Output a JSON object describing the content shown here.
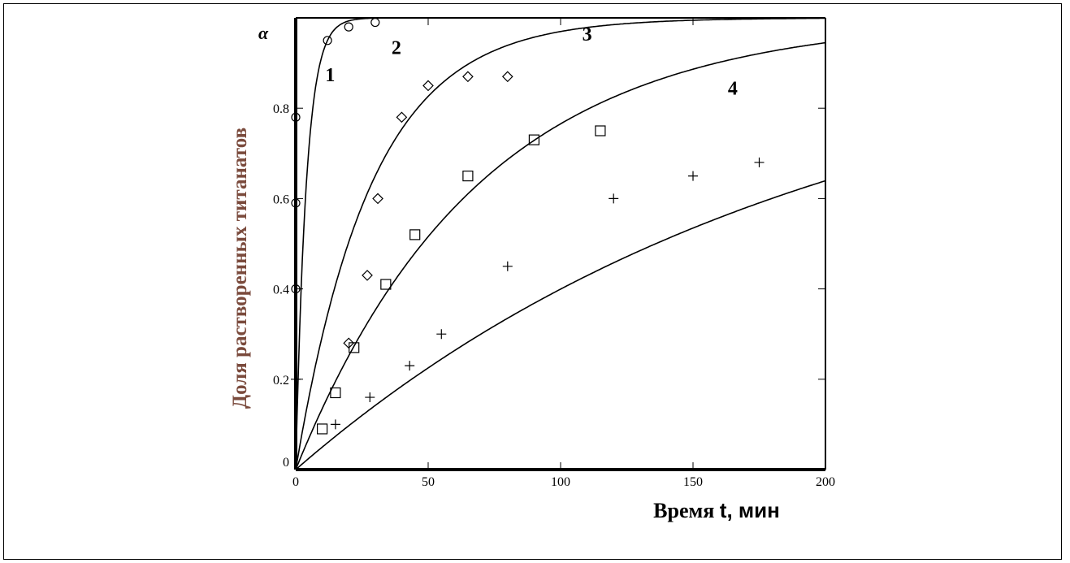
{
  "chart_data": {
    "type": "scatter",
    "ylabel": "Доля растворенных титанатов",
    "ylabel_symbol": "α",
    "xlabel": "Время",
    "xlabel_symbol": "t",
    "xlabel_unit": ", мин",
    "xlim": [
      0,
      200
    ],
    "ylim": [
      0,
      1.0
    ],
    "x_ticks": [
      0,
      50,
      100,
      150,
      200
    ],
    "x_tick_labels": [
      "0",
      "50",
      "100",
      "150",
      "200"
    ],
    "y_ticks": [
      0,
      0.2,
      0.4,
      0.6,
      0.8
    ],
    "y_tick_labels": [
      "0",
      "0.2",
      "0.4",
      "0.6",
      "0.8"
    ],
    "grid": false,
    "legend": "none",
    "series": [
      {
        "name": "1",
        "marker": "circle",
        "points": [
          [
            0,
            0.4
          ],
          [
            0,
            0.59
          ],
          [
            0,
            0.78
          ],
          [
            12,
            0.95
          ],
          [
            20,
            0.98
          ],
          [
            30,
            0.99
          ]
        ],
        "curve_k": 0.25,
        "label_pos": [
          13,
          0.86
        ]
      },
      {
        "name": "2",
        "marker": "diamond",
        "points": [
          [
            20,
            0.28
          ],
          [
            27,
            0.43
          ],
          [
            31,
            0.6
          ],
          [
            40,
            0.78
          ],
          [
            50,
            0.85
          ],
          [
            65,
            0.87
          ],
          [
            80,
            0.87
          ]
        ],
        "curve_k": 0.035,
        "label_pos": [
          38,
          0.92
        ]
      },
      {
        "name": "3",
        "marker": "square",
        "points": [
          [
            10,
            0.09
          ],
          [
            15,
            0.17
          ],
          [
            22,
            0.27
          ],
          [
            34,
            0.41
          ],
          [
            45,
            0.52
          ],
          [
            65,
            0.65
          ],
          [
            90,
            0.73
          ],
          [
            115,
            0.75
          ]
        ],
        "curve_k": 0.0145,
        "label_pos": [
          110,
          0.95
        ]
      },
      {
        "name": "4",
        "marker": "plus",
        "points": [
          [
            0,
            0.2
          ],
          [
            15,
            0.1
          ],
          [
            28,
            0.16
          ],
          [
            43,
            0.23
          ],
          [
            55,
            0.3
          ],
          [
            80,
            0.45
          ],
          [
            120,
            0.6
          ],
          [
            150,
            0.65
          ],
          [
            175,
            0.68
          ]
        ],
        "curve_k": 0.0051,
        "label_pos": [
          165,
          0.83
        ]
      }
    ]
  }
}
